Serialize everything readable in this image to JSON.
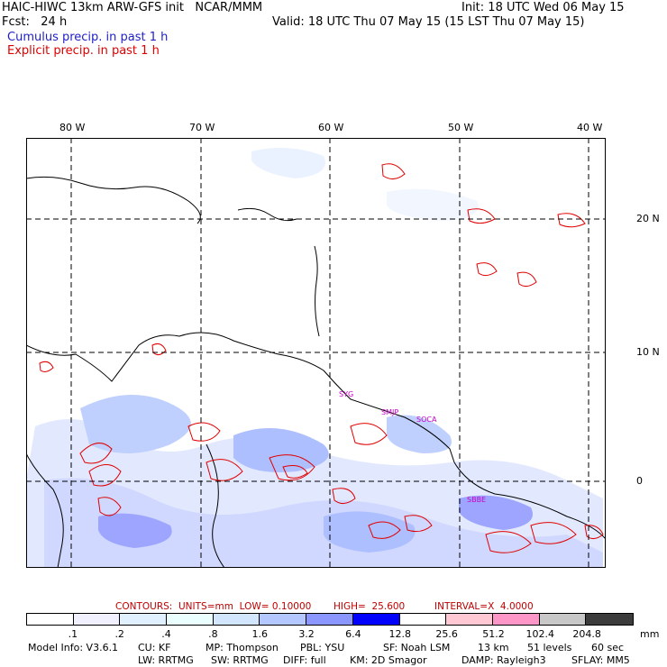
{
  "header": {
    "line1_left": "HAIC-HIWC 13km ARW-GFS init   NCAR/MMM",
    "line1_right": "Init: 18 UTC Wed 06 May 15",
    "line2_left": "Fcst:   24 h",
    "line2_right": "Valid: 18 UTC Thu 07 May 15 (15 LST Thu 07 May 15)",
    "line3": "Cumulus precip. in past 1 h",
    "line4": "Explicit precip. in past 1 h"
  },
  "colors": {
    "cumulus": "#1e1ec8",
    "explicit": "#e00000",
    "grid": "#000000"
  },
  "map": {
    "lon_labels": [
      "80 W",
      "70 W",
      "60 W",
      "50 W",
      "40 W"
    ],
    "lat_labels": [
      "20 N",
      "10 N",
      "0"
    ],
    "stations": [
      "SYG",
      "SMJP",
      "SOCA",
      "SBBE"
    ]
  },
  "contours": {
    "units": "CONTOURS:  UNITS=mm  LOW= 0.10000",
    "high": "HIGH=  25.600",
    "interval": "INTERVAL=X  4.0000"
  },
  "scale": {
    "unit": "mm",
    "colors": [
      "#ffffff",
      "#f0f0ff",
      "#e0f0ff",
      "#eaffff",
      "#d2e6ff",
      "#b4c8ff",
      "#8c96ff",
      "#5a5aff",
      "#0000ff",
      "#ffffff",
      "#ffc8d2",
      "#ff96c8",
      "#c8c8c8",
      "#969696",
      "#3c3c3c",
      "#d2a0ff"
    ],
    "ticks": [
      ".1",
      ".2",
      ".4",
      ".8",
      "1.6",
      "3.2",
      "6.4",
      "12.8",
      "25.6",
      "51.2",
      "102.4",
      "204.8"
    ]
  },
  "model_info": {
    "model": "Model Info: V3.6.1",
    "cu": "CU: KF",
    "mp": "MP: Thompson",
    "pbl": "PBL: YSU",
    "sf": "SF: Noah LSM",
    "res": "13 km",
    "levels": "51 levels",
    "dt": "60 sec",
    "lw": "LW: RRTMG",
    "sw": "SW: RRTMG",
    "diff": "DIFF: full",
    "km": "KM: 2D Smagor",
    "damp": "DAMP: Rayleigh3",
    "sflay": "SFLAY: MM5"
  }
}
